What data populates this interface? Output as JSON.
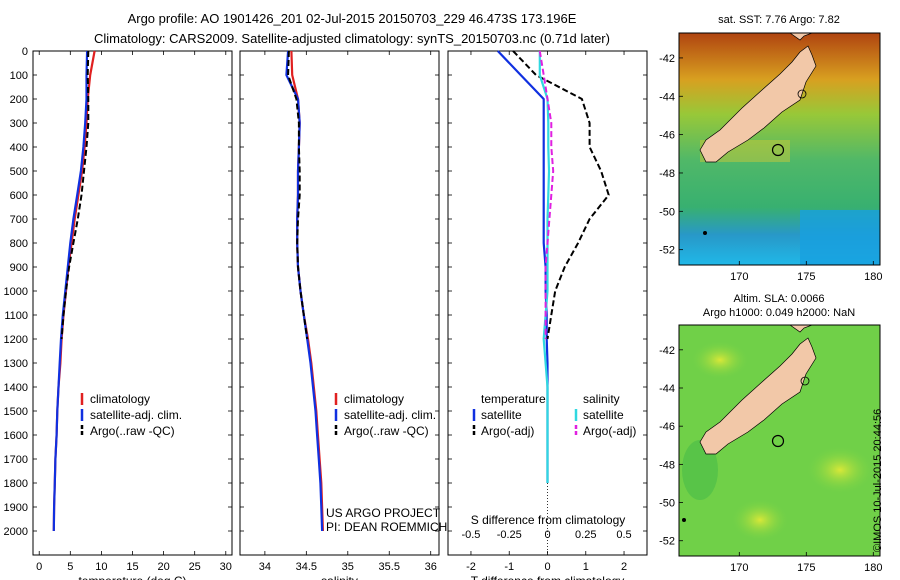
{
  "header": {
    "line1": "Argo profile: AO 1901426_201 02-Jul-2015 20150703_229 46.473S 173.196E",
    "line2": "Climatology: CARS2009. Satellite-adjusted climatology: synTS_20150703.nc (0.71d later)"
  },
  "colors": {
    "climatology": "#e02020",
    "satellite": "#1030e0",
    "argo": "#000000",
    "satellite_salinity": "#30d8e0",
    "argo_salinity": "#e020e0",
    "land": "#f2c8a8"
  },
  "chart_data": [
    {
      "type": "line",
      "panel": "temperature",
      "xlabel": "temperature (deg C)",
      "ylabel": "",
      "xlim": [
        -1,
        31
      ],
      "ylim": [
        2100,
        0
      ],
      "x_ticks": [
        0,
        5,
        10,
        15,
        20,
        25,
        30
      ],
      "y_ticks": [
        0,
        100,
        200,
        300,
        400,
        500,
        600,
        700,
        800,
        900,
        1000,
        1100,
        1200,
        1300,
        1400,
        1500,
        1600,
        1700,
        1800,
        1900,
        2000
      ],
      "legend": [
        "climatology",
        "satellite-adj. clim.",
        "Argo(..raw -QC)"
      ],
      "series": [
        {
          "name": "climatology",
          "color": "#e02020",
          "dash": false,
          "x": [
            8.9,
            8.2,
            7.8,
            7.6,
            7.3,
            6.9,
            6.3,
            5.7,
            5.2,
            4.7,
            4.3,
            3.9,
            3.6,
            3.4,
            3.1,
            2.9,
            2.8,
            2.6,
            2.5,
            2.4,
            2.35
          ],
          "y": [
            0,
            100,
            200,
            300,
            400,
            500,
            600,
            700,
            800,
            900,
            1000,
            1100,
            1200,
            1300,
            1400,
            1500,
            1600,
            1700,
            1800,
            1900,
            2000
          ]
        },
        {
          "name": "satellite-adj. clim.",
          "color": "#1030e0",
          "dash": false,
          "x": [
            7.7,
            7.6,
            7.6,
            7.4,
            7.1,
            6.7,
            6.1,
            5.5,
            5.0,
            4.6,
            4.2,
            3.8,
            3.5,
            3.3,
            3.1,
            2.9,
            2.8,
            2.6,
            2.5,
            2.4,
            2.35
          ],
          "y": [
            0,
            100,
            200,
            300,
            400,
            500,
            600,
            700,
            800,
            900,
            1000,
            1100,
            1200,
            1300,
            1400,
            1500,
            1600,
            1700,
            1800,
            1900,
            2000
          ]
        },
        {
          "name": "Argo(..raw -QC)",
          "color": "#000000",
          "dash": true,
          "x": [
            7.9,
            7.8,
            7.9,
            7.9,
            7.6,
            7.2,
            6.8,
            6.2,
            5.5,
            4.8,
            4.3,
            3.9,
            3.6
          ],
          "y": [
            0,
            100,
            200,
            300,
            400,
            500,
            600,
            700,
            800,
            900,
            1000,
            1100,
            1200
          ]
        }
      ]
    },
    {
      "type": "line",
      "panel": "salinity",
      "xlabel": "salinity",
      "ylabel": "",
      "xlim": [
        33.7,
        36.1
      ],
      "ylim": [
        2100,
        0
      ],
      "x_ticks": [
        34,
        34.5,
        35,
        35.5,
        36
      ],
      "legend": [
        "climatology",
        "satellite-adj. clim.",
        "Argo(..raw -QC)"
      ],
      "annotation": [
        "US ARGO PROJECT",
        "PI: DEAN ROEMMICH"
      ],
      "series": [
        {
          "name": "climatology",
          "color": "#e02020",
          "dash": false,
          "x": [
            34.32,
            34.33,
            34.4,
            34.42,
            34.41,
            34.4,
            34.4,
            34.39,
            34.39,
            34.4,
            34.43,
            34.47,
            34.52,
            34.56,
            34.59,
            34.62,
            34.64,
            34.66,
            34.68,
            34.69,
            34.7
          ],
          "y": [
            0,
            100,
            200,
            300,
            400,
            500,
            600,
            700,
            800,
            900,
            1000,
            1100,
            1200,
            1300,
            1400,
            1500,
            1600,
            1700,
            1800,
            1900,
            2000
          ]
        },
        {
          "name": "satellite-adj. clim.",
          "color": "#1030e0",
          "dash": false,
          "x": [
            34.28,
            34.26,
            34.4,
            34.42,
            34.41,
            34.4,
            34.4,
            34.39,
            34.39,
            34.4,
            34.43,
            34.47,
            34.51,
            34.55,
            34.58,
            34.61,
            34.63,
            34.65,
            34.67,
            34.68,
            34.69
          ],
          "y": [
            0,
            100,
            200,
            300,
            400,
            500,
            600,
            700,
            800,
            900,
            1000,
            1100,
            1200,
            1300,
            1400,
            1500,
            1600,
            1700,
            1800,
            1900,
            2000
          ]
        },
        {
          "name": "Argo(..raw -QC)",
          "color": "#000000",
          "dash": true,
          "x": [
            34.29,
            34.28,
            34.38,
            34.41,
            34.41,
            34.42,
            34.42,
            34.4,
            34.39,
            34.4,
            34.43,
            34.47,
            34.51
          ],
          "y": [
            0,
            100,
            200,
            300,
            400,
            500,
            600,
            700,
            800,
            900,
            1000,
            1100,
            1200
          ]
        }
      ]
    },
    {
      "type": "line",
      "panel": "difference",
      "xlabel": "T difference from climatology",
      "xlabel_top": "S difference from climatology",
      "xlim": [
        -2.6,
        2.6
      ],
      "ylim": [
        2100,
        0
      ],
      "x_ticks": [
        -2,
        -1,
        0,
        1,
        2
      ],
      "x_ticks_top_labels": [
        "-0.5",
        "-0.25",
        "0",
        "0.25",
        "0.5"
      ],
      "legend_left_title": "temperature",
      "legend_right_title": "salinity",
      "legend": [
        "satellite",
        "Argo(-adj)",
        "satellite",
        "Argo(-adj)"
      ],
      "series": [
        {
          "name": "temperature satellite",
          "color": "#1030e0",
          "dash": false,
          "x": [
            -1.3,
            -0.7,
            -0.1,
            -0.1,
            -0.1,
            -0.1,
            -0.1,
            -0.1,
            -0.1,
            -0.05,
            -0.05,
            -0.02,
            -0.02,
            0,
            0,
            0,
            0,
            0,
            0
          ],
          "y": [
            0,
            100,
            200,
            300,
            400,
            500,
            600,
            700,
            800,
            900,
            1000,
            1100,
            1200,
            1300,
            1400,
            1500,
            1600,
            1700,
            1800
          ]
        },
        {
          "name": "temperature Argo(-adj)",
          "color": "#000000",
          "dash": true,
          "x": [
            -0.9,
            -0.3,
            0.9,
            1.1,
            1.1,
            1.4,
            1.6,
            1.1,
            0.8,
            0.45,
            0.2,
            0.1,
            0.0
          ],
          "y": [
            0,
            100,
            200,
            300,
            400,
            500,
            600,
            700,
            800,
            900,
            1000,
            1100,
            1200
          ]
        },
        {
          "name": "salinity satellite",
          "color": "#30d8e0",
          "dash": false,
          "x": [
            -0.2,
            -0.2,
            0.0,
            0.02,
            0.02,
            0.04,
            0.02,
            0.0,
            0.0,
            0.0,
            0.0,
            -0.05,
            -0.1,
            -0.05,
            0.0,
            0.0,
            0.0,
            0.0,
            0.0
          ],
          "y": [
            0,
            100,
            200,
            300,
            400,
            500,
            600,
            700,
            800,
            900,
            1000,
            1100,
            1200,
            1300,
            1400,
            1500,
            1600,
            1700,
            1800
          ]
        },
        {
          "name": "salinity Argo(-adj)",
          "color": "#e020e0",
          "dash": true,
          "x": [
            -0.2,
            -0.1,
            0.0,
            0.1,
            0.1,
            0.15,
            0.1,
            0.05,
            0.0,
            -0.05,
            -0.05,
            -0.05,
            -0.05
          ],
          "y": [
            0,
            100,
            200,
            300,
            400,
            500,
            600,
            700,
            800,
            900,
            1000,
            1100,
            1200
          ]
        }
      ]
    },
    {
      "type": "heatmap",
      "panel": "sst-map",
      "title": "sat. SST: 7.76 Argo: 7.82",
      "xlim": [
        165.5,
        180.5
      ],
      "ylim": [
        -52.8,
        -40.7
      ],
      "x_ticks": [
        170,
        175,
        180
      ],
      "y_ticks": [
        -42,
        -44,
        -46,
        -48,
        -50,
        -52
      ],
      "argo_position": {
        "lon": 173.196,
        "lat": -46.473
      }
    },
    {
      "type": "heatmap",
      "panel": "sla-map",
      "title_line1": "Altim. SLA: 0.0066",
      "title_line2": "Argo h1000: 0.049 h2000: NaN",
      "xlim": [
        165.5,
        180.5
      ],
      "ylim": [
        -52.8,
        -40.7
      ],
      "x_ticks": [
        170,
        175,
        180
      ],
      "y_ticks": [
        -42,
        -44,
        -46,
        -48,
        -50,
        -52
      ],
      "argo_position": {
        "lon": 173.196,
        "lat": -46.473
      }
    }
  ],
  "credit": "©IMOS 10-Jul-2015 20:44:56"
}
